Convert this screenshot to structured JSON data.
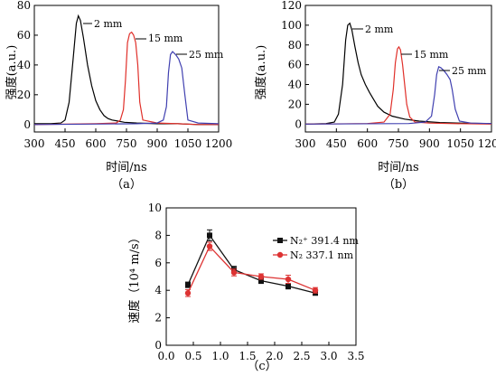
{
  "chart_data": [
    {
      "type": "line",
      "panel_label": "（a）",
      "xlabel": "时间/ns",
      "ylabel": "强度(a.u.)",
      "xlim": [
        300,
        1200
      ],
      "ylim": [
        -5,
        80
      ],
      "xticks": [
        300,
        450,
        600,
        750,
        900,
        1050,
        1200
      ],
      "yticks": [
        0,
        20,
        40,
        60,
        80
      ],
      "series": [
        {
          "name": "2 mm",
          "color": "#000000",
          "x": [
            300,
            380,
            430,
            450,
            470,
            490,
            505,
            515,
            525,
            540,
            560,
            580,
            600,
            620,
            640,
            660,
            680,
            700,
            740,
            800,
            900,
            1000,
            1100,
            1200
          ],
          "y": [
            0.5,
            0.5,
            1,
            3,
            15,
            45,
            68,
            73,
            70,
            58,
            40,
            26,
            16,
            10,
            6,
            4,
            3,
            2.5,
            1.5,
            1,
            0.5,
            0.5,
            0,
            0
          ]
        },
        {
          "name": "15 mm",
          "color": "#e0302a",
          "x": [
            300,
            600,
            700,
            720,
            735,
            745,
            755,
            765,
            775,
            785,
            795,
            805,
            815,
            830,
            900,
            1000,
            1100,
            1200
          ],
          "y": [
            0,
            0.5,
            1,
            3,
            10,
            30,
            55,
            61,
            62,
            60,
            55,
            40,
            15,
            3,
            1,
            0.5,
            0,
            0
          ]
        },
        {
          "name": "25 mm",
          "color": "#4040b0",
          "x": [
            300,
            800,
            900,
            930,
            945,
            955,
            965,
            975,
            990,
            1005,
            1020,
            1035,
            1050,
            1100,
            1200
          ],
          "y": [
            0,
            0.5,
            1,
            3,
            12,
            35,
            47,
            49,
            47,
            44,
            38,
            20,
            3,
            1,
            0.5
          ]
        }
      ],
      "annotations": [
        "2 mm",
        "15 mm",
        "25 mm"
      ]
    },
    {
      "type": "line",
      "panel_label": "（b）",
      "xlabel": "时间/ns",
      "ylabel": "强度(a.u.)",
      "xlim": [
        300,
        1200
      ],
      "ylim": [
        -8,
        120
      ],
      "xticks": [
        300,
        450,
        600,
        750,
        900,
        1050,
        1200
      ],
      "yticks": [
        0,
        20,
        40,
        60,
        80,
        100,
        120
      ],
      "series": [
        {
          "name": "2 mm",
          "color": "#000000",
          "x": [
            300,
            400,
            440,
            460,
            480,
            495,
            505,
            515,
            525,
            540,
            555,
            570,
            590,
            610,
            630,
            650,
            680,
            720,
            780,
            850,
            950,
            1050,
            1200
          ],
          "y": [
            0,
            0.5,
            2,
            10,
            40,
            85,
            100,
            102,
            95,
            78,
            62,
            50,
            40,
            32,
            25,
            18,
            12,
            8,
            5,
            3,
            1.5,
            1,
            0.5
          ]
        },
        {
          "name": "15 mm",
          "color": "#e0302a",
          "x": [
            300,
            600,
            680,
            710,
            725,
            735,
            745,
            752,
            760,
            770,
            780,
            790,
            805,
            830,
            900,
            1000,
            1200
          ],
          "y": [
            0,
            0.5,
            2,
            10,
            35,
            62,
            76,
            78,
            75,
            60,
            40,
            20,
            7,
            2,
            1,
            0.5,
            0
          ]
        },
        {
          "name": "25 mm",
          "color": "#4040b0",
          "x": [
            300,
            800,
            880,
            910,
            925,
            935,
            945,
            955,
            970,
            985,
            1000,
            1010,
            1025,
            1045,
            1100,
            1200
          ],
          "y": [
            0,
            0.5,
            2,
            8,
            30,
            50,
            58,
            57,
            54,
            50,
            45,
            35,
            15,
            3,
            1,
            0.5
          ]
        }
      ],
      "annotations": [
        "2 mm",
        "15 mm",
        "25 mm"
      ]
    },
    {
      "type": "scatter",
      "panel_label": "（c）",
      "xlabel": "",
      "ylabel": "速度（10⁴ m/s）",
      "xlim": [
        0.0,
        3.5
      ],
      "ylim": [
        0,
        10
      ],
      "xticks": [
        "0.0",
        "0.5",
        "1.0",
        "1.5",
        "2.0",
        "2.5",
        "3.0",
        "3.5"
      ],
      "yticks": [
        "0",
        "2",
        "4",
        "6",
        "8",
        "10"
      ],
      "legend_position": "upper-right",
      "series": [
        {
          "name": "N₂⁺ 391.4 nm",
          "color": "#111111",
          "marker": "square",
          "x": [
            0.4,
            0.8,
            1.25,
            1.75,
            2.25,
            2.75
          ],
          "y": [
            4.4,
            8.0,
            5.5,
            4.7,
            4.3,
            3.8
          ],
          "err": [
            0.2,
            0.4,
            0.25,
            0.2,
            0.2,
            0.15
          ]
        },
        {
          "name": "N₂ 337.1 nm",
          "color": "#dd3333",
          "marker": "circle",
          "x": [
            0.4,
            0.8,
            1.25,
            1.75,
            2.25,
            2.75
          ],
          "y": [
            3.8,
            7.2,
            5.3,
            5.0,
            4.8,
            4.0
          ],
          "err": [
            0.25,
            0.3,
            0.25,
            0.2,
            0.3,
            0.2
          ]
        }
      ]
    }
  ]
}
